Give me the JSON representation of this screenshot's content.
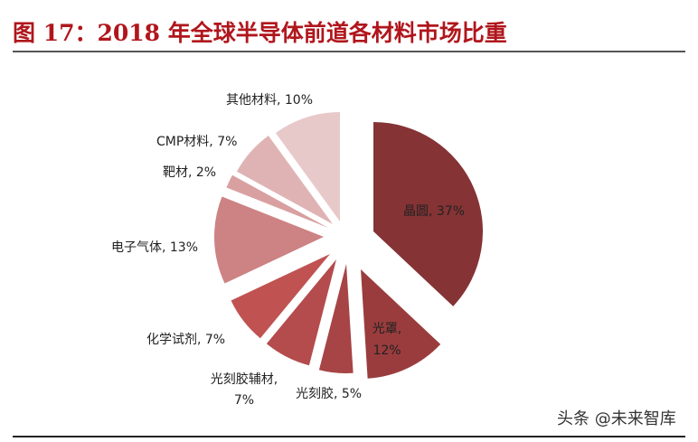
{
  "title": "图 17：2018 年全球半导体前道各材料市场比重",
  "watermark": "头条 @未来智库",
  "chart_data": {
    "type": "pie",
    "title": "2018 年全球半导体前道各材料市场比重",
    "exploded": true,
    "start_angle_deg": 0,
    "direction": "clockwise",
    "legend": "none (data labels)",
    "slices": [
      {
        "label": "晶圆",
        "value": 37,
        "display": "晶圆, 37%",
        "color": "#853335"
      },
      {
        "label": "光罩",
        "value": 12,
        "display": "光罩, 12%",
        "color": "#9a3c3d"
      },
      {
        "label": "光刻胶",
        "value": 5,
        "display": "光刻胶, 5%",
        "color": "#a74445"
      },
      {
        "label": "光刻胶辅材",
        "value": 7,
        "display": "光刻胶辅材, 7%",
        "color": "#b44b4c"
      },
      {
        "label": "化学试剂",
        "value": 7,
        "display": "化学试剂, 7%",
        "color": "#c05252"
      },
      {
        "label": "电子气体",
        "value": 13,
        "display": "电子气体, 13%",
        "color": "#cd8283"
      },
      {
        "label": "靶材",
        "value": 2,
        "display": "靶材, 2%",
        "color": "#d9a0a1"
      },
      {
        "label": "CMP材料",
        "value": 7,
        "display": "CMP材料, 7%",
        "color": "#dfb3b4"
      },
      {
        "label": "其他材料",
        "value": 10,
        "display": "其他材料, 10%",
        "color": "#e8c9ca"
      }
    ]
  },
  "labels": {
    "wafer": "晶圆, 37%",
    "mask_line1": "光罩,",
    "mask_line2": "12%",
    "photoresist": "光刻胶, 5%",
    "photoresist_aux_line1": "光刻胶辅材,",
    "photoresist_aux_line2": "7%",
    "wet_chem": "化学试剂, 7%",
    "gas": "电子气体, 13%",
    "target": "靶材, 2%",
    "cmp": "CMP材料, 7%",
    "other": "其他材料, 10%"
  }
}
